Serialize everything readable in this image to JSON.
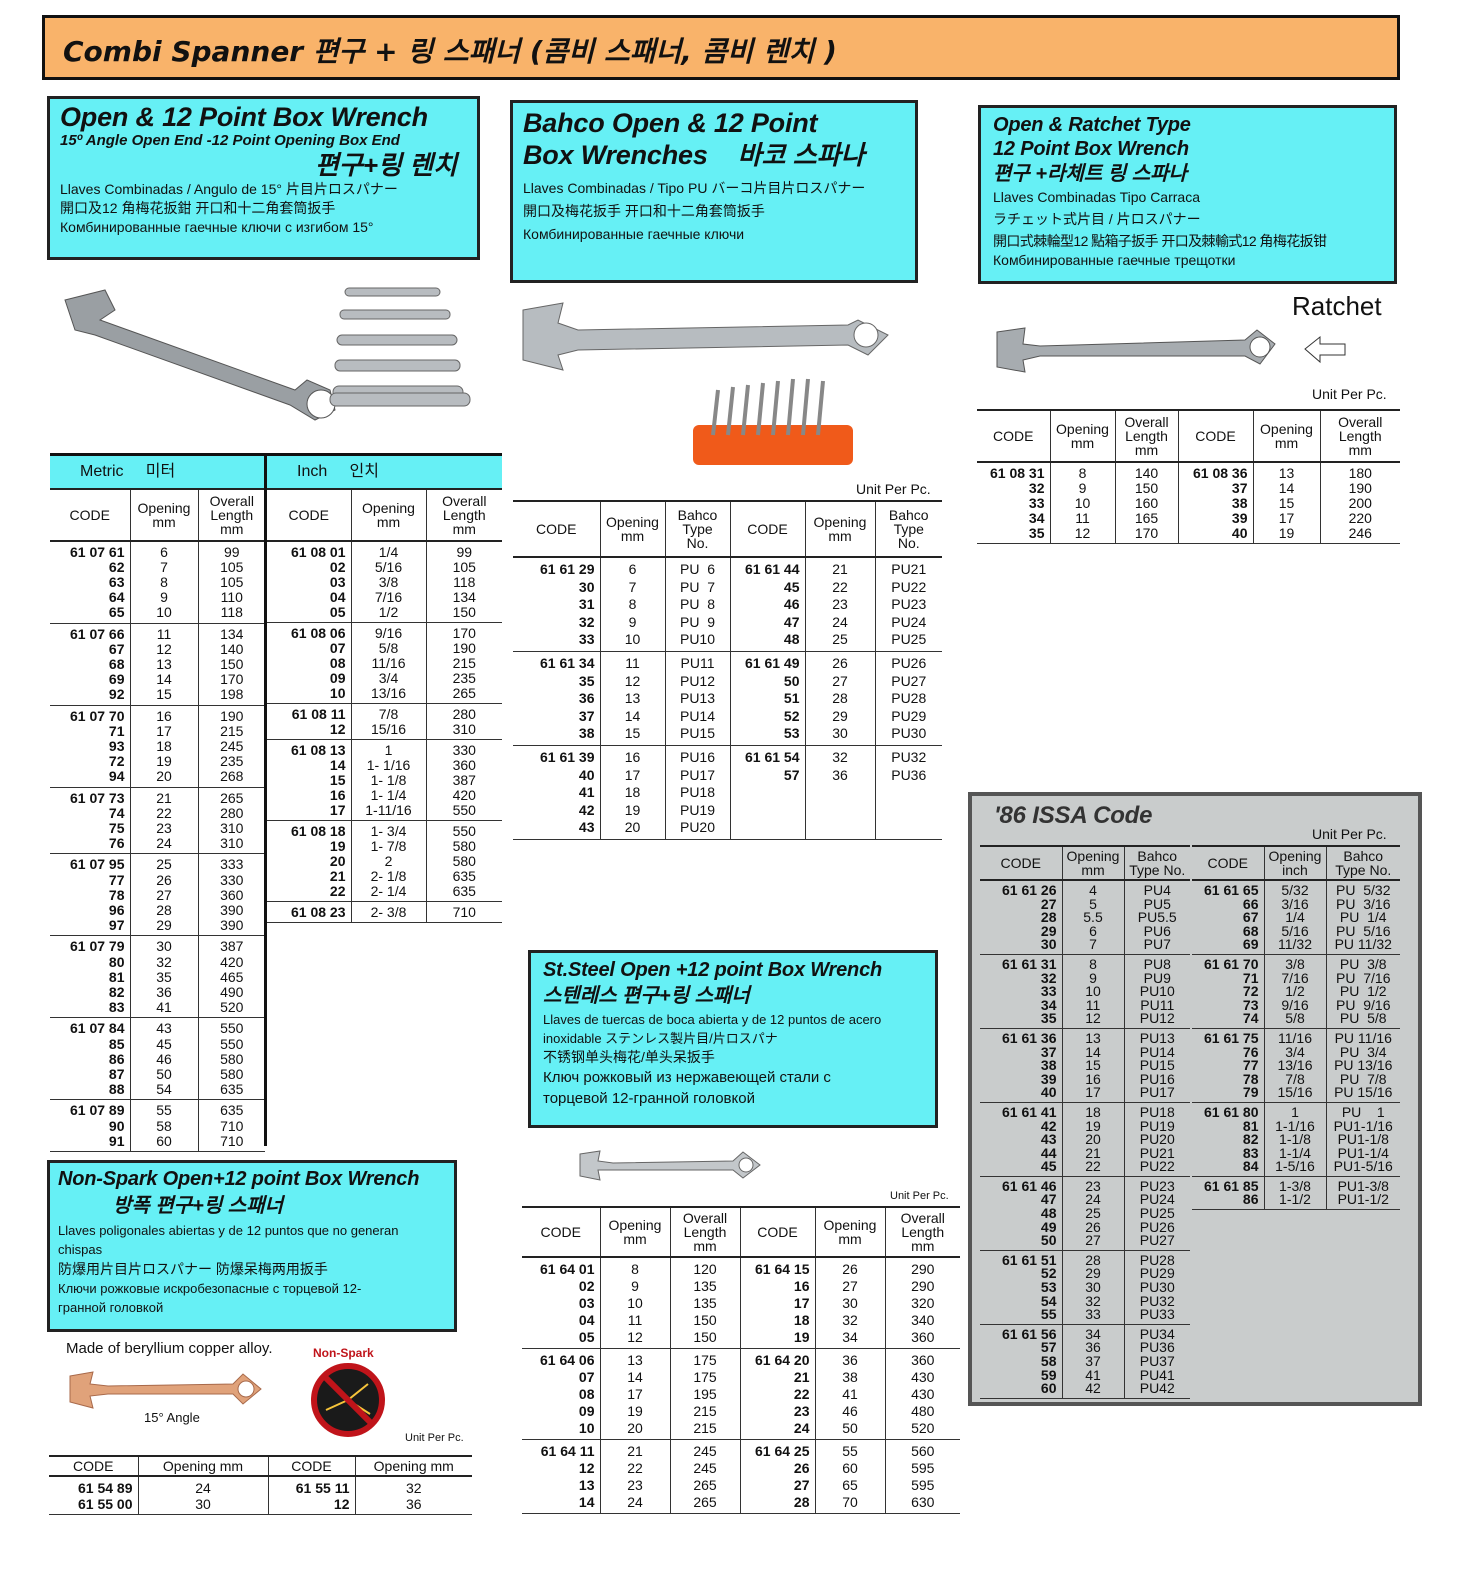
{
  "banner": "Combi Spanner  편구 + 링 스패너 (콤비 스패너, 콤비 렌치 )",
  "sec1": {
    "title": "Open & 12 Point Box Wrench",
    "sub": "15º Angle Open End -12 Point Opening Box End",
    "kr": "편구+링 렌치",
    "l1": "Llaves Combinadas / Angulo de  15°  片目片ロスパナー",
    "l2": "開口及12 角梅花扳鉗 开口和十二角套筒扳手",
    "l3": "Комбинированные гаечные  ключи с изгибом 15°",
    "metric_band": "Metric     미터",
    "inch_band": "Inch     인치",
    "metric": {
      "headers": [
        "CODE",
        "Opening\nmm",
        "Overall\nLength\nmm"
      ],
      "groups": [
        [
          "61 07 61\n62\n63\n64\n65",
          "6\n7\n8\n9\n10",
          "99\n105\n105\n110\n118"
        ],
        [
          "61 07 66\n67\n68\n69\n92",
          "11\n12\n13\n14\n15",
          "134\n140\n150\n170\n198"
        ],
        [
          "61 07 70\n71\n93\n72\n94",
          "16\n17\n18\n19\n20",
          "190\n215\n245\n235\n268"
        ],
        [
          "61 07 73\n74\n75\n76",
          "21\n22\n23\n24",
          "265\n280\n310\n310"
        ],
        [
          "61 07 95\n77\n78\n96\n97",
          "25\n26\n27\n28\n29",
          "333\n330\n360\n390\n390"
        ],
        [
          "61 07 79\n80\n81\n82\n83",
          "30\n32\n35\n36\n41",
          "387\n420\n465\n490\n520"
        ],
        [
          "61 07 84\n85\n86\n87\n88",
          "43\n45\n46\n50\n54",
          "550\n550\n580\n580\n635"
        ],
        [
          "61 07 89\n90\n91",
          "55\n58\n60",
          "635\n710\n710"
        ]
      ]
    },
    "inch": {
      "headers": [
        "CODE",
        "Opening\nmm",
        "Overall\nLength\nmm"
      ],
      "groups": [
        [
          "61 08 01\n02\n03\n04\n05",
          "1/4\n5/16\n3/8\n7/16\n1/2",
          "99\n105\n118\n134\n150"
        ],
        [
          "61 08 06\n07\n08\n09\n10",
          "9/16\n5/8\n11/16\n3/4\n13/16",
          "170\n190\n215\n235\n265"
        ],
        [
          "61 08 11\n12",
          "7/8\n15/16",
          "280\n310"
        ],
        [
          "61 08 13\n14\n15\n16\n17",
          "1\n1- 1/16\n1- 1/8\n1- 1/4\n1-11/16",
          "330\n360\n387\n420\n550"
        ],
        [
          "61 08 18\n19\n20\n21\n22",
          "1- 3/4\n1- 7/8\n2\n2- 1/8\n2- 1/4",
          "550\n580\n580\n635\n635"
        ],
        [
          "61 08 23",
          "2- 3/8",
          "710"
        ]
      ]
    }
  },
  "sec2": {
    "title1": "Bahco Open & 12 Point",
    "title2": "Box Wrenches",
    "kr": "바코 스파나",
    "l1": "Llaves Combinadas / Tipo PU    バーコ片目片ロスパナー",
    "l2": "開口及梅花扳手   开口和十二角套筒扳手",
    "l3": "Комбинированные гаечные ключи",
    "unit": "Unit Per Pc.",
    "table": {
      "headers": [
        "CODE",
        "Opening\nmm",
        "Bahco\nType\nNo.",
        "CODE",
        "Opening\nmm",
        "Bahco\nType\nNo."
      ],
      "groups": [
        [
          "61 61 29\n30\n31\n32\n33",
          "6\n7\n8\n9\n10",
          "PU  6\nPU  7\nPU  8\nPU  9\nPU10",
          "61 61 44\n45\n46\n47\n48",
          "21\n22\n23\n24\n25",
          "PU21\nPU22\nPU23\nPU24\nPU25"
        ],
        [
          "61 61 34\n35\n36\n37\n38",
          "11\n12\n13\n14\n15",
          "PU11\nPU12\nPU13\nPU14\nPU15",
          "61 61 49\n50\n51\n52\n53",
          "26\n27\n28\n29\n30",
          "PU26\nPU27\nPU28\nPU29\nPU30"
        ],
        [
          "61 61 39\n40\n41\n42\n43",
          "16\n17\n18\n19\n20",
          "PU16\nPU17\nPU18\nPU19\nPU20",
          "61 61 54\n57",
          "32\n36",
          "PU32\nPU36"
        ]
      ]
    }
  },
  "sec3": {
    "t1": "Open & Ratchet Type",
    "t2": "12 Point Box Wrench",
    "kr": "편구 +라체트 링 스파나",
    "l1": "Llaves Combinadas Tipo Carraca",
    "l2": "ラチェット式片目 / 片ロスパナー",
    "l3": "開口式棘輪型12 點箱子扳手   开口及棘輸式12 角梅花扳钳",
    "l4": "Комбинированные гаечные трещотки",
    "ratchet": "Ratchet",
    "unit": "Unit Per Pc.",
    "table": {
      "headers": [
        "CODE",
        "Opening\nmm",
        "Overall\nLength\nmm",
        "CODE",
        "Opening\nmm",
        "Overall\nLength\nmm"
      ],
      "groups": [
        [
          "61 08 31\n32\n33\n34\n35",
          "8\n9\n10\n11\n12",
          "140\n150\n160\n165\n170",
          "61 08 36\n37\n38\n39\n40",
          "13\n14\n15\n17\n19",
          "180\n190\n200\n220\n246"
        ]
      ]
    }
  },
  "issa": {
    "title": "'86 ISSA Code",
    "unit": "Unit Per Pc.",
    "left": {
      "headers": [
        "CODE",
        "Opening\nmm",
        "Bahco\nType No."
      ],
      "groups": [
        [
          "61 61 26\n27\n28\n29\n30",
          "4\n5\n5.5\n6\n7",
          "PU4\nPU5\nPU5.5\nPU6\nPU7"
        ],
        [
          "61 61 31\n32\n33\n34\n35",
          "8\n9\n10\n11\n12",
          "PU8\nPU9\nPU10\nPU11\nPU12"
        ],
        [
          "61 61 36\n37\n38\n39\n40",
          "13\n14\n15\n16\n17",
          "PU13\nPU14\nPU15\nPU16\nPU17"
        ],
        [
          "61 61 41\n42\n43\n44\n45",
          "18\n19\n20\n21\n22",
          "PU18\nPU19\nPU20\nPU21\nPU22"
        ],
        [
          "61 61 46\n47\n48\n49\n50",
          "23\n24\n25\n26\n27",
          "PU23\nPU24\nPU25\nPU26\nPU27"
        ],
        [
          "61 61 51\n52\n53\n54\n55",
          "28\n29\n30\n32\n33",
          "PU28\nPU29\nPU30\nPU32\nPU33"
        ],
        [
          "61 61 56\n57\n58\n59\n60",
          "34\n36\n37\n41\n42",
          "PU34\nPU36\nPU37\nPU41\nPU42"
        ]
      ]
    },
    "right": {
      "headers": [
        "CODE",
        "Opening\ninch",
        "Bahco\nType No."
      ],
      "groups": [
        [
          "61 61 65\n66\n67\n68\n69",
          "5/32\n3/16\n1/4\n5/16\n11/32",
          "PU  5/32\nPU  3/16\nPU  1/4\nPU  5/16\nPU 11/32"
        ],
        [
          "61 61 70\n71\n72\n73\n74",
          "3/8\n7/16\n1/2\n9/16\n5/8",
          "PU  3/8\nPU  7/16\nPU  1/2\nPU  9/16\nPU  5/8"
        ],
        [
          "61 61 75\n76\n77\n78\n79",
          "11/16\n3/4\n13/16\n7/8\n15/16",
          "PU 11/16\nPU  3/4\nPU 13/16\nPU  7/8\nPU 15/16"
        ],
        [
          "61 61 80\n81\n82\n83\n84",
          "1\n1-1/16\n1-1/8\n1-1/4\n1-5/16",
          "PU    1\nPU1-1/16\nPU1-1/8\nPU1-1/4\nPU1-5/16"
        ],
        [
          "61 61 85\n86",
          "1-3/8\n1-1/2",
          "PU1-3/8\nPU1-1/2"
        ]
      ]
    }
  },
  "sec5": {
    "t1": "St.Steel Open +12 point Box Wrench",
    "kr": "스텐레스  편구+링 스패너",
    "l1": "Llaves de tuercas de boca abierta y de 12 puntos de acero",
    "l2": "inoxidable        ステンレス製片目/片ロスパナ",
    "l3": "不锈钢单头梅花/单头呆扳手",
    "l4": "Ключ рожковый из нержавеющей стали с",
    "l5": "торцевой 12-гранной головкой",
    "unit": "Unit Per Pc.",
    "table": {
      "headers": [
        "CODE",
        "Opening\nmm",
        "Overall\nLength\nmm",
        "CODE",
        "Opening\nmm",
        "Overall\nLength\nmm"
      ],
      "groups": [
        [
          "61 64 01\n02\n03\n04\n05",
          "8\n9\n10\n11\n12",
          "120\n135\n135\n150\n150",
          "61 64 15\n16\n17\n18\n19",
          "26\n27\n30\n32\n34",
          "290\n290\n320\n340\n360"
        ],
        [
          "61 64 06\n07\n08\n09\n10",
          "13\n14\n17\n19\n20",
          "175\n175\n195\n215\n215",
          "61 64 20\n21\n22\n23\n24",
          "36\n38\n41\n46\n50",
          "360\n430\n430\n480\n520"
        ],
        [
          "61 64 11\n12\n13\n14",
          "21\n22\n23\n24",
          "245\n245\n265\n265",
          "61 64 25\n26\n27\n28",
          "55\n60\n65\n70",
          "560\n595\n595\n630"
        ]
      ]
    }
  },
  "sec6": {
    "t1": "Non-Spark Open+12 point Box Wrench",
    "kr": "방폭  편구+링 스패너",
    "l1": "Llaves poligonales abiertas y de 12 puntos que no generan",
    "l2": "chispas",
    "l3": "防爆用片目片ロスパナー   防爆呆梅两用扳手",
    "l4": "Ключи рожковые искробезопасные с торцевой 12-",
    "l5": "гранной головкой",
    "made": "Made of beryllium copper alloy.",
    "nonspark": "Non-Spark",
    "angle": "15°  Angle",
    "unit": "Unit Per Pc.",
    "table": {
      "headers": [
        "CODE",
        "Opening mm",
        "CODE",
        "Opening mm"
      ],
      "groups": [
        [
          "61 54 89\n61 55 00",
          "24\n30",
          "61 55 11\n12",
          "32\n36"
        ]
      ]
    }
  },
  "colors": {
    "banner": "#f9b36a",
    "cyan": "#66f0f5",
    "issa_bg": "#c9cccc",
    "nonspark_red": "#c0141a"
  }
}
